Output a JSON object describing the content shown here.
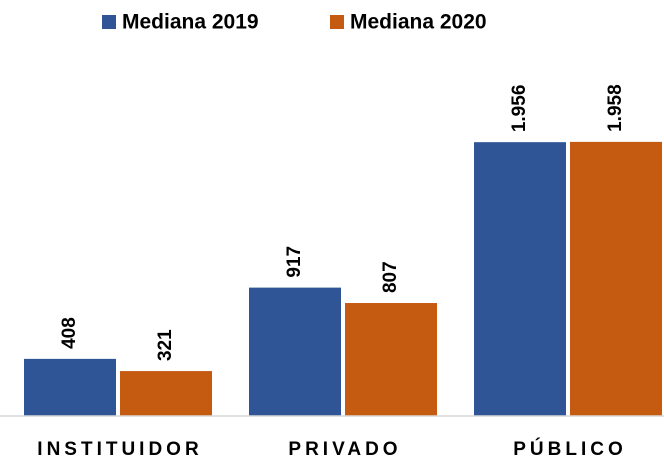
{
  "chart_data": {
    "type": "bar",
    "categories": [
      "INSTITUIDOR",
      "PRIVADO",
      "PÚBLICO"
    ],
    "series": [
      {
        "name": "Mediana 2019",
        "color": "#2f5597",
        "values": [
          408,
          917,
          1956
        ],
        "value_labels": [
          "408",
          "917",
          "1.956"
        ]
      },
      {
        "name": "Mediana 2020",
        "color": "#c55a11",
        "values": [
          321,
          807,
          1958
        ],
        "value_labels": [
          "321",
          "807",
          "1.958"
        ]
      }
    ]
  }
}
